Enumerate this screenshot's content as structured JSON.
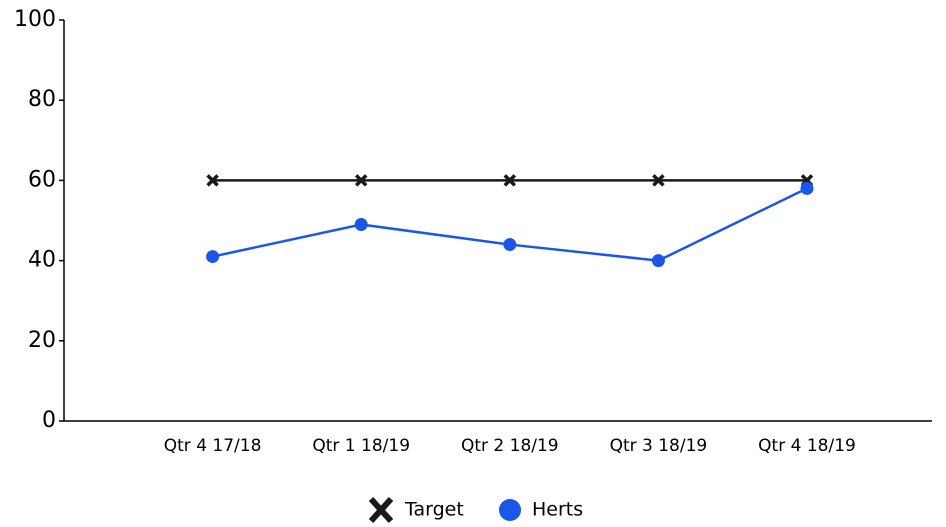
{
  "chart_data": {
    "type": "line",
    "categories": [
      "Qtr 4 17/18",
      "Qtr 1 18/19",
      "Qtr 2 18/19",
      "Qtr 3 18/19",
      "Qtr 4 18/19"
    ],
    "series": [
      {
        "name": "Target",
        "color": "#1a1a1a",
        "marker": "x",
        "values": [
          60,
          60,
          60,
          60,
          60
        ]
      },
      {
        "name": "Herts",
        "color": "#1a56e8",
        "marker": "circle",
        "values": [
          41,
          49,
          44,
          40,
          58
        ]
      }
    ],
    "ylim": [
      0,
      100
    ],
    "yticks": [
      0,
      20,
      40,
      60,
      80,
      100
    ],
    "grid": false,
    "legend": "bottom"
  }
}
